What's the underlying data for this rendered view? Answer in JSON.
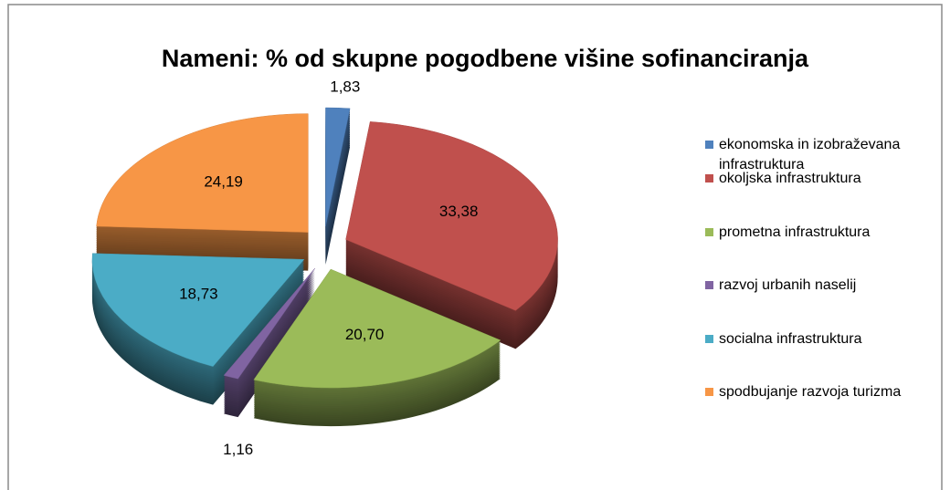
{
  "chart_data": {
    "type": "pie3d",
    "title": "Nameni: % od skupne pogodbene višine sofinanciranja",
    "categories": [
      "ekonomska in izobraževana infrastruktura",
      "okoljska infrastruktura",
      "prometna infrastruktura",
      "razvoj urbanih naselij",
      "socialna infrastruktura",
      "spodbujanje razvoja turizma"
    ],
    "values": [
      1.83,
      33.38,
      20.7,
      1.16,
      18.73,
      24.19
    ],
    "value_labels": [
      "1,83",
      "33,38",
      "20,70",
      "1,16",
      "18,73",
      "24,19"
    ],
    "colors": [
      "#4f81bd",
      "#c0504d",
      "#9bbb59",
      "#8064a2",
      "#4bacc6",
      "#f79646"
    ],
    "legend": "right"
  }
}
